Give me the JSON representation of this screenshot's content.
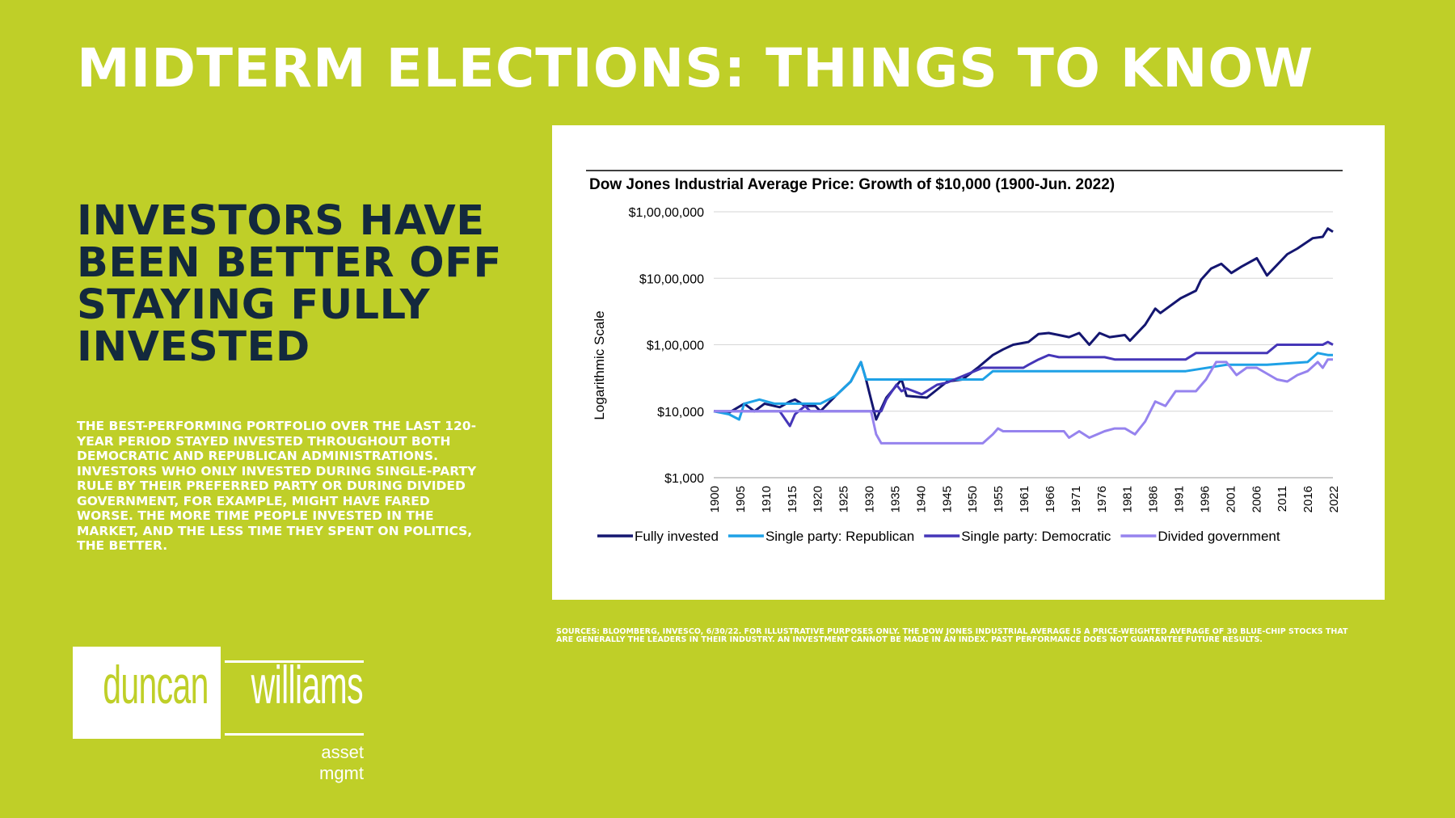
{
  "header": {
    "title": "MIDTERM ELECTIONS: THINGS TO KNOW"
  },
  "left": {
    "headline": "INVESTORS HAVE BEEN BETTER OFF STAYING FULLY INVESTED",
    "body": "THE BEST-PERFORMING PORTFOLIO OVER THE LAST 120-YEAR PERIOD STAYED INVESTED THROUGHOUT BOTH DEMOCRATIC AND REPUBLICAN ADMINISTRATIONS. INVESTORS WHO ONLY INVESTED DURING SINGLE-PARTY RULE BY THEIR PREFERRED PARTY OR DURING DIVIDED GOVERNMENT, FOR EXAMPLE, MIGHT HAVE FARED WORSE. THE MORE TIME PEOPLE INVESTED IN THE MARKET, AND THE LESS TIME THEY SPENT ON POLITICS, THE BETTER."
  },
  "footer": {
    "sources": "SOURCES: BLOOMBERG, INVESCO, 6/30/22. FOR ILLUSTRATIVE PURPOSES ONLY. THE DOW JONES INDUSTRIAL AVERAGE IS A PRICE-WEIGHTED AVERAGE OF 30 BLUE-CHIP STOCKS THAT ARE GENERALLY THE LEADERS IN THEIR INDUSTRY. AN INVESTMENT CANNOT BE MADE IN AN INDEX. PAST PERFORMANCE DOES NOT GUARANTEE FUTURE RESULTS."
  },
  "logo": {
    "word1": "duncan",
    "word2": "williams",
    "sub": "asset mgmt"
  },
  "colors": {
    "background": "#bfcf28",
    "headline": "#13293d",
    "fully_invested": "#141670",
    "republican": "#1ea1e6",
    "democratic": "#4536b8",
    "divided": "#9683ee"
  },
  "chart_data": {
    "type": "line",
    "title": "Dow Jones Industrial Average Price: Growth of $10,000 (1900-Jun. 2022)",
    "ylabel": "Logarithmic Scale",
    "xlabel": "",
    "yscale": "log",
    "ylim": [
      1000,
      10000000
    ],
    "yticks": [
      1000,
      10000,
      100000,
      1000000,
      10000000
    ],
    "ytick_labels": [
      "$1,000",
      "$10,000",
      "$1,00,000",
      "$10,00,000",
      "$1,00,00,000"
    ],
    "xlim": [
      1900,
      2022
    ],
    "xtick_labels": [
      "1900",
      "1905",
      "1910",
      "1915",
      "1920",
      "1925",
      "1930",
      "1935",
      "1940",
      "1945",
      "1950",
      "1955",
      "1961",
      "1966",
      "1971",
      "1976",
      "1981",
      "1986",
      "1991",
      "1996",
      "2001",
      "2006",
      "2011",
      "2016",
      "2022"
    ],
    "grid": "horizontal",
    "legend_position": "bottom",
    "series": [
      {
        "name": "Fully invested",
        "color": "#141670",
        "x": [
          1900,
          1903,
          1906,
          1908,
          1910,
          1913,
          1915,
          1916,
          1918,
          1920,
          1921,
          1924,
          1927,
          1929,
          1930,
          1931,
          1932,
          1934,
          1937,
          1938,
          1942,
          1946,
          1949,
          1952,
          1955,
          1957,
          1959,
          1962,
          1964,
          1966,
          1968,
          1970,
          1972,
          1974,
          1976,
          1978,
          1981,
          1982,
          1985,
          1987,
          1988,
          1992,
          1995,
          1996,
          1998,
          2000,
          2002,
          2004,
          2007,
          2009,
          2013,
          2015,
          2018,
          2020,
          2021,
          2022
        ],
        "y": [
          10000,
          9500,
          13000,
          10000,
          13000,
          11500,
          14000,
          15000,
          12000,
          12000,
          10000,
          17000,
          28000,
          55000,
          30000,
          15000,
          7500,
          16000,
          30000,
          17000,
          16000,
          28000,
          30000,
          45000,
          70000,
          85000,
          100000,
          110000,
          145000,
          150000,
          140000,
          130000,
          150000,
          100000,
          150000,
          130000,
          140000,
          115000,
          200000,
          350000,
          300000,
          500000,
          650000,
          950000,
          1400000,
          1650000,
          1200000,
          1500000,
          2000000,
          1100000,
          2300000,
          2800000,
          4000000,
          4200000,
          5600000,
          5000000
        ]
      },
      {
        "name": "Single party: Republican",
        "color": "#1ea1e6",
        "x": [
          1900,
          1903,
          1905,
          1906,
          1909,
          1912,
          1913,
          1921,
          1924,
          1927,
          1929,
          1930,
          1933,
          1953,
          1955,
          1961,
          1969,
          1977,
          1981,
          1993,
          2001,
          2009,
          2017,
          2019,
          2021,
          2022
        ],
        "y": [
          10000,
          9000,
          7500,
          13000,
          15000,
          13000,
          13000,
          13000,
          17000,
          28000,
          55000,
          30000,
          30000,
          30000,
          40000,
          40000,
          40000,
          40000,
          40000,
          40000,
          50000,
          50000,
          55000,
          75000,
          70000,
          70000
        ]
      },
      {
        "name": "Single party: Democratic",
        "color": "#4536b8",
        "x": [
          1900,
          1913,
          1915,
          1916,
          1918,
          1919,
          1921,
          1933,
          1934,
          1936,
          1937,
          1938,
          1941,
          1944,
          1946,
          1953,
          1961,
          1962,
          1964,
          1966,
          1968,
          1969,
          1977,
          1979,
          1981,
          1993,
          1995,
          2001,
          2009,
          2011,
          2017,
          2020,
          2021,
          2022
        ],
        "y": [
          10000,
          10000,
          6000,
          9000,
          12000,
          10000,
          10000,
          10000,
          15000,
          25000,
          20000,
          22000,
          18000,
          25000,
          27000,
          45000,
          45000,
          50000,
          60000,
          70000,
          65000,
          65000,
          65000,
          60000,
          60000,
          60000,
          75000,
          75000,
          75000,
          100000,
          100000,
          100000,
          110000,
          100000
        ]
      },
      {
        "name": "Divided government",
        "color": "#9683ee",
        "x": [
          1900,
          1911,
          1913,
          1919,
          1921,
          1931,
          1932,
          1933,
          1947,
          1949,
          1953,
          1955,
          1956,
          1957,
          1961,
          1969,
          1970,
          1972,
          1974,
          1977,
          1979,
          1981,
          1983,
          1985,
          1987,
          1989,
          1991,
          1993,
          1995,
          1997,
          1999,
          2001,
          2003,
          2005,
          2007,
          2011,
          2013,
          2015,
          2017,
          2019,
          2020,
          2021,
          2022
        ],
        "y": [
          10000,
          10000,
          10000,
          10000,
          10000,
          10000,
          4500,
          3300,
          3300,
          3300,
          3300,
          4500,
          5500,
          5000,
          5000,
          5000,
          4000,
          5000,
          4000,
          5000,
          5500,
          5500,
          4500,
          7000,
          14000,
          12000,
          20000,
          20000,
          20000,
          30000,
          55000,
          55000,
          35000,
          45000,
          45000,
          30000,
          28000,
          35000,
          40000,
          55000,
          45000,
          60000,
          60000
        ]
      }
    ]
  }
}
